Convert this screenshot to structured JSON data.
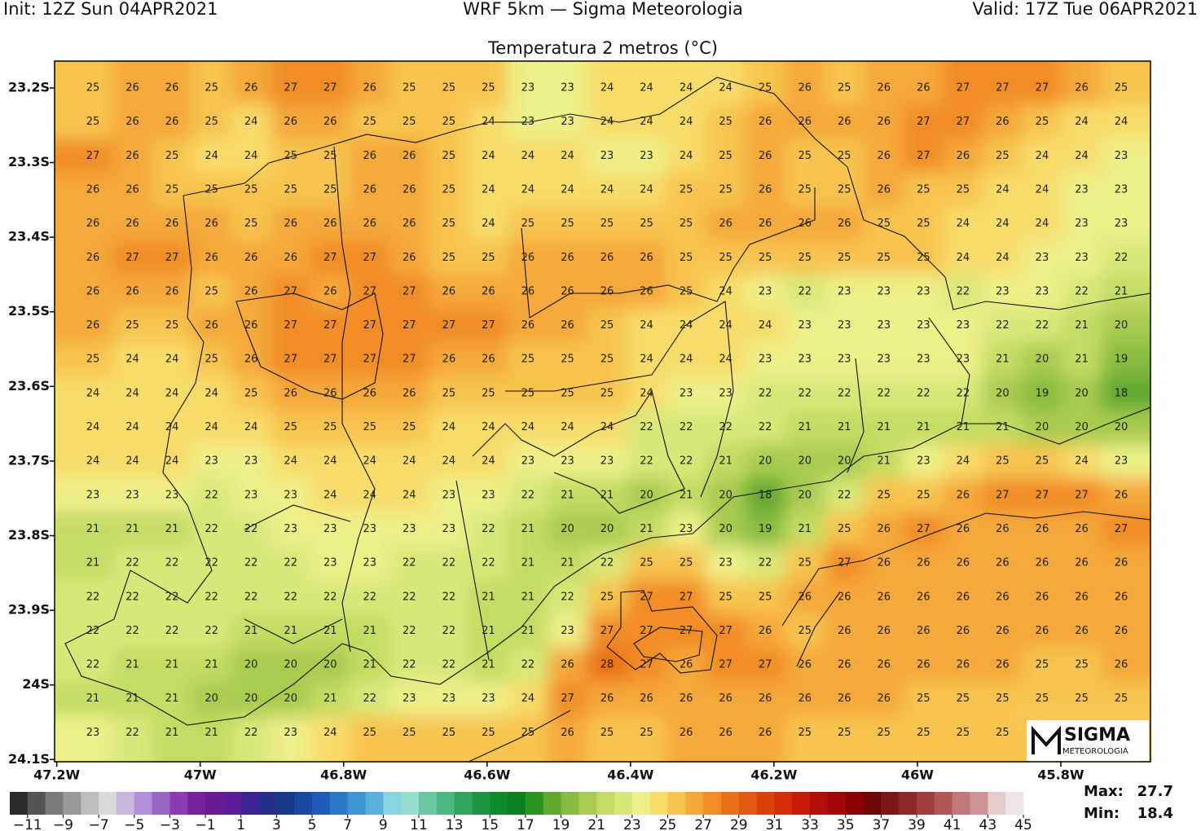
{
  "map": {
    "init": "Init: 12Z Sun 04APR2021",
    "model": "WRF 5km — Sigma Meteorologia",
    "valid": "Valid: 17Z Tue 06APR2021",
    "title": "Temperatura 2 metros (°C)",
    "xlim": [
      -47.203,
      -45.675
    ],
    "ylim": [
      -23.164,
      -24.103
    ],
    "xticks": [
      {
        "value": -47.2,
        "label": "47.2W"
      },
      {
        "value": -47.0,
        "label": "47W"
      },
      {
        "value": -46.8,
        "label": "46.8W"
      },
      {
        "value": -46.6,
        "label": "46.6W"
      },
      {
        "value": -46.4,
        "label": "46.4W"
      },
      {
        "value": -46.2,
        "label": "46.2W"
      },
      {
        "value": -46.0,
        "label": "46W"
      },
      {
        "value": -45.8,
        "label": "45.8W"
      }
    ],
    "yticks": [
      {
        "value": -23.2,
        "label": "23.2S"
      },
      {
        "value": -23.3,
        "label": "23.3S"
      },
      {
        "value": -23.4,
        "label": "23.4S"
      },
      {
        "value": -23.5,
        "label": "23.5S"
      },
      {
        "value": -23.6,
        "label": "23.6S"
      },
      {
        "value": -23.7,
        "label": "23.7S"
      },
      {
        "value": -23.8,
        "label": "23.8S"
      },
      {
        "value": -23.9,
        "label": "23.9S"
      },
      {
        "value": -24.0,
        "label": "24S"
      },
      {
        "value": -24.1,
        "label": "24.1S"
      }
    ],
    "values": [
      [
        25,
        26,
        26,
        25,
        26,
        27,
        27,
        26,
        25,
        25,
        25,
        23,
        23,
        24,
        24,
        24,
        24,
        25,
        26,
        25,
        26,
        26,
        27,
        27,
        27,
        26,
        25
      ],
      [
        25,
        26,
        26,
        25,
        24,
        26,
        26,
        25,
        25,
        25,
        24,
        23,
        23,
        24,
        24,
        24,
        25,
        26,
        26,
        26,
        26,
        27,
        27,
        26,
        25,
        24,
        24
      ],
      [
        27,
        26,
        25,
        24,
        24,
        25,
        25,
        26,
        26,
        25,
        24,
        24,
        24,
        23,
        23,
        24,
        25,
        26,
        25,
        25,
        26,
        27,
        26,
        25,
        24,
        24,
        23
      ],
      [
        26,
        26,
        25,
        25,
        25,
        25,
        25,
        26,
        26,
        25,
        24,
        24,
        24,
        24,
        24,
        25,
        25,
        26,
        25,
        25,
        26,
        25,
        25,
        24,
        24,
        23,
        23
      ],
      [
        26,
        26,
        26,
        26,
        25,
        26,
        26,
        26,
        26,
        25,
        24,
        25,
        25,
        25,
        25,
        25,
        26,
        26,
        26,
        26,
        25,
        25,
        24,
        24,
        24,
        23,
        23
      ],
      [
        26,
        27,
        27,
        26,
        26,
        26,
        27,
        27,
        26,
        25,
        25,
        26,
        26,
        26,
        26,
        25,
        25,
        25,
        25,
        25,
        25,
        25,
        24,
        24,
        23,
        23,
        22
      ],
      [
        26,
        26,
        26,
        25,
        26,
        27,
        26,
        27,
        27,
        26,
        26,
        26,
        26,
        26,
        26,
        25,
        24,
        23,
        22,
        23,
        23,
        23,
        22,
        23,
        23,
        22,
        21
      ],
      [
        26,
        25,
        25,
        26,
        26,
        27,
        27,
        27,
        27,
        27,
        27,
        26,
        26,
        25,
        24,
        24,
        24,
        24,
        23,
        23,
        23,
        23,
        23,
        22,
        22,
        21,
        20
      ],
      [
        25,
        24,
        24,
        25,
        26,
        27,
        27,
        27,
        27,
        26,
        26,
        25,
        25,
        25,
        24,
        24,
        24,
        23,
        23,
        23,
        23,
        23,
        23,
        21,
        20,
        21,
        19
      ],
      [
        24,
        24,
        24,
        24,
        25,
        26,
        26,
        26,
        26,
        25,
        25,
        25,
        25,
        25,
        24,
        23,
        23,
        22,
        22,
        22,
        22,
        22,
        22,
        20,
        19,
        20,
        18
      ],
      [
        24,
        24,
        24,
        24,
        24,
        25,
        25,
        25,
        25,
        24,
        24,
        24,
        24,
        24,
        22,
        22,
        22,
        22,
        21,
        21,
        21,
        21,
        21,
        21,
        20,
        20,
        20
      ],
      [
        24,
        24,
        24,
        23,
        23,
        24,
        24,
        24,
        24,
        24,
        24,
        23,
        23,
        23,
        22,
        22,
        21,
        20,
        20,
        20,
        21,
        23,
        24,
        25,
        25,
        24,
        23
      ],
      [
        23,
        23,
        23,
        22,
        23,
        23,
        24,
        24,
        24,
        23,
        23,
        22,
        21,
        21,
        20,
        21,
        20,
        18,
        20,
        22,
        25,
        25,
        26,
        27,
        27,
        27,
        26
      ],
      [
        21,
        21,
        21,
        22,
        22,
        23,
        23,
        23,
        23,
        23,
        22,
        21,
        20,
        20,
        21,
        23,
        20,
        19,
        21,
        25,
        26,
        27,
        26,
        26,
        26,
        26,
        27
      ],
      [
        21,
        22,
        22,
        22,
        22,
        22,
        23,
        23,
        22,
        22,
        22,
        21,
        21,
        22,
        25,
        25,
        23,
        22,
        25,
        27,
        26,
        26,
        26,
        26,
        26,
        26,
        26
      ],
      [
        22,
        22,
        22,
        22,
        22,
        22,
        22,
        22,
        22,
        22,
        21,
        21,
        22,
        25,
        27,
        27,
        25,
        25,
        26,
        26,
        26,
        26,
        26,
        26,
        26,
        26,
        26
      ],
      [
        22,
        22,
        22,
        22,
        21,
        21,
        21,
        21,
        22,
        22,
        21,
        21,
        23,
        27,
        27,
        27,
        27,
        26,
        25,
        26,
        26,
        26,
        26,
        26,
        26,
        26,
        26
      ],
      [
        22,
        21,
        21,
        21,
        20,
        20,
        20,
        21,
        22,
        22,
        21,
        22,
        26,
        28,
        27,
        26,
        27,
        27,
        26,
        26,
        26,
        26,
        26,
        26,
        25,
        25,
        26
      ],
      [
        21,
        21,
        21,
        20,
        20,
        20,
        21,
        22,
        23,
        23,
        23,
        24,
        27,
        26,
        26,
        26,
        26,
        26,
        26,
        26,
        26,
        25,
        25,
        25,
        25,
        25,
        25
      ],
      [
        23,
        22,
        21,
        21,
        22,
        23,
        24,
        25,
        25,
        25,
        25,
        25,
        26,
        25,
        25,
        26,
        26,
        26,
        25,
        25,
        25,
        25,
        25,
        25,
        null,
        null,
        null
      ]
    ],
    "colorbar": {
      "colors": [
        "#2b2b2b",
        "#555555",
        "#7a7a7a",
        "#9a9a9a",
        "#bdbdbd",
        "#dadada",
        "#c9b4df",
        "#b08fd8",
        "#9a66c4",
        "#8a3cb0",
        "#74229a",
        "#6a1a90",
        "#5a1c98",
        "#3c2494",
        "#26308a",
        "#1a3a88",
        "#1a48a0",
        "#1e5ab8",
        "#2b78c8",
        "#3c94d0",
        "#5cb0dc",
        "#88d4e0",
        "#98dcd0",
        "#6cc8a0",
        "#4cb880",
        "#30a85c",
        "#1c9440",
        "#0c8a2c",
        "#0a8020",
        "#2a9422",
        "#60a830",
        "#88bc40",
        "#a8cc50",
        "#c4dc64",
        "#d8e878",
        "#eef088",
        "#f8dc6a",
        "#f8c450",
        "#f5a83a",
        "#f28c26",
        "#ea7018",
        "#e45a10",
        "#dc4208",
        "#d42c06",
        "#c81a06",
        "#b40c08",
        "#a00606",
        "#8a0000",
        "#700808",
        "#7c1818",
        "#902828",
        "#a03c3c",
        "#b05858",
        "#c07878",
        "#cc9494",
        "#e4cccc",
        "#efe4e8"
      ],
      "ticks": [
        {
          "value": -11,
          "label": "−11"
        },
        {
          "value": -9,
          "label": "−9"
        },
        {
          "value": -7,
          "label": "−7"
        },
        {
          "value": -5,
          "label": "−5"
        },
        {
          "value": -3,
          "label": "−3"
        },
        {
          "value": -1,
          "label": "−1"
        },
        1,
        3,
        5,
        7,
        9,
        11,
        13,
        15,
        17,
        19,
        21,
        23,
        25,
        27,
        29,
        31,
        33,
        35,
        37,
        39,
        41,
        43,
        45
      ]
    },
    "max_label": "Max:",
    "max": 27.7,
    "min_label": "Min:",
    "min": 18.4,
    "logo": {
      "name": "SIGMA",
      "sub": "METEOROLOGIA"
    }
  }
}
